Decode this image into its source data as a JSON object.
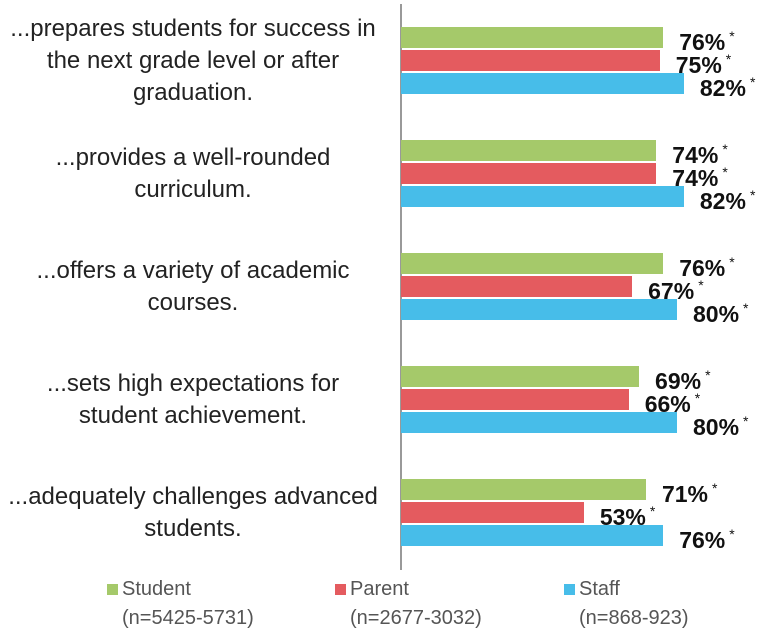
{
  "chart_data": {
    "type": "bar",
    "orientation": "horizontal",
    "categories": [
      "...prepares students for success in the next grade level or after graduation.",
      "...provides a well-rounded curriculum.",
      "...offers a variety of academic courses.",
      "...sets high expectations for student achievement.",
      "...adequately challenges advanced students."
    ],
    "series": [
      {
        "name": "Student",
        "n_label": "(n=5425-5731)",
        "color": "#a5c96a",
        "values": [
          76,
          74,
          76,
          69,
          71
        ],
        "value_labels": [
          "76%",
          "74%",
          "76%",
          "69%",
          "71%"
        ],
        "note_marks": [
          "*",
          "*",
          "*",
          "*",
          "*"
        ]
      },
      {
        "name": "Parent",
        "n_label": "(n=2677-3032)",
        "color": "#e45b5f",
        "values": [
          75,
          74,
          67,
          66,
          53
        ],
        "value_labels": [
          "75%",
          "74%",
          "67%",
          "66%",
          "53%"
        ],
        "note_marks": [
          "*",
          "*",
          "*",
          "*",
          "*"
        ]
      },
      {
        "name": "Staff",
        "n_label": "(n=868-923)",
        "color": "#47bde9",
        "values": [
          82,
          82,
          80,
          80,
          76
        ],
        "value_labels": [
          "82%",
          "82%",
          "80%",
          "80%",
          "76%"
        ],
        "note_marks": [
          "*",
          "*",
          "*",
          "*",
          "*"
        ]
      }
    ],
    "legend": "bottom"
  }
}
